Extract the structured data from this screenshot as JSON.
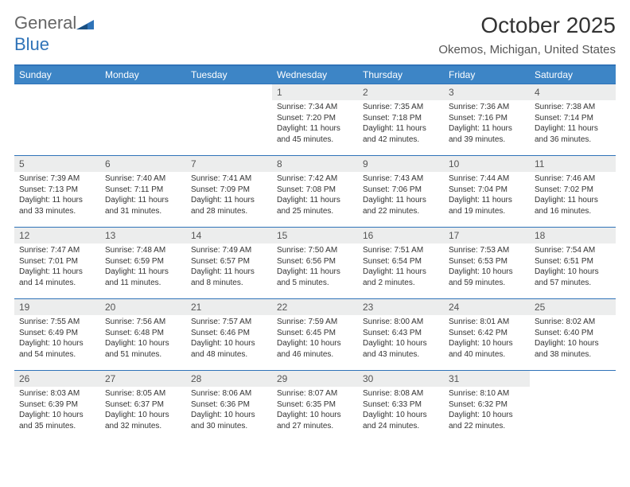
{
  "logo": {
    "line1": "General",
    "line2": "Blue"
  },
  "title": "October 2025",
  "location": "Okemos, Michigan, United States",
  "colors": {
    "header_bg": "#3d85c6",
    "header_border": "#2f73b8",
    "daynum_bg": "#eceded",
    "text": "#333333",
    "muted": "#555555",
    "logo_blue": "#2f73b8"
  },
  "typography": {
    "title_fontsize": 28,
    "location_fontsize": 15,
    "header_fontsize": 12,
    "daynum_fontsize": 12,
    "body_fontsize": 10
  },
  "weekdays": [
    "Sunday",
    "Monday",
    "Tuesday",
    "Wednesday",
    "Thursday",
    "Friday",
    "Saturday"
  ],
  "first_weekday_index": 3,
  "days": [
    {
      "n": 1,
      "sunrise": "7:34 AM",
      "sunset": "7:20 PM",
      "daylight": "11 hours and 45 minutes."
    },
    {
      "n": 2,
      "sunrise": "7:35 AM",
      "sunset": "7:18 PM",
      "daylight": "11 hours and 42 minutes."
    },
    {
      "n": 3,
      "sunrise": "7:36 AM",
      "sunset": "7:16 PM",
      "daylight": "11 hours and 39 minutes."
    },
    {
      "n": 4,
      "sunrise": "7:38 AM",
      "sunset": "7:14 PM",
      "daylight": "11 hours and 36 minutes."
    },
    {
      "n": 5,
      "sunrise": "7:39 AM",
      "sunset": "7:13 PM",
      "daylight": "11 hours and 33 minutes."
    },
    {
      "n": 6,
      "sunrise": "7:40 AM",
      "sunset": "7:11 PM",
      "daylight": "11 hours and 31 minutes."
    },
    {
      "n": 7,
      "sunrise": "7:41 AM",
      "sunset": "7:09 PM",
      "daylight": "11 hours and 28 minutes."
    },
    {
      "n": 8,
      "sunrise": "7:42 AM",
      "sunset": "7:08 PM",
      "daylight": "11 hours and 25 minutes."
    },
    {
      "n": 9,
      "sunrise": "7:43 AM",
      "sunset": "7:06 PM",
      "daylight": "11 hours and 22 minutes."
    },
    {
      "n": 10,
      "sunrise": "7:44 AM",
      "sunset": "7:04 PM",
      "daylight": "11 hours and 19 minutes."
    },
    {
      "n": 11,
      "sunrise": "7:46 AM",
      "sunset": "7:02 PM",
      "daylight": "11 hours and 16 minutes."
    },
    {
      "n": 12,
      "sunrise": "7:47 AM",
      "sunset": "7:01 PM",
      "daylight": "11 hours and 14 minutes."
    },
    {
      "n": 13,
      "sunrise": "7:48 AM",
      "sunset": "6:59 PM",
      "daylight": "11 hours and 11 minutes."
    },
    {
      "n": 14,
      "sunrise": "7:49 AM",
      "sunset": "6:57 PM",
      "daylight": "11 hours and 8 minutes."
    },
    {
      "n": 15,
      "sunrise": "7:50 AM",
      "sunset": "6:56 PM",
      "daylight": "11 hours and 5 minutes."
    },
    {
      "n": 16,
      "sunrise": "7:51 AM",
      "sunset": "6:54 PM",
      "daylight": "11 hours and 2 minutes."
    },
    {
      "n": 17,
      "sunrise": "7:53 AM",
      "sunset": "6:53 PM",
      "daylight": "10 hours and 59 minutes."
    },
    {
      "n": 18,
      "sunrise": "7:54 AM",
      "sunset": "6:51 PM",
      "daylight": "10 hours and 57 minutes."
    },
    {
      "n": 19,
      "sunrise": "7:55 AM",
      "sunset": "6:49 PM",
      "daylight": "10 hours and 54 minutes."
    },
    {
      "n": 20,
      "sunrise": "7:56 AM",
      "sunset": "6:48 PM",
      "daylight": "10 hours and 51 minutes."
    },
    {
      "n": 21,
      "sunrise": "7:57 AM",
      "sunset": "6:46 PM",
      "daylight": "10 hours and 48 minutes."
    },
    {
      "n": 22,
      "sunrise": "7:59 AM",
      "sunset": "6:45 PM",
      "daylight": "10 hours and 46 minutes."
    },
    {
      "n": 23,
      "sunrise": "8:00 AM",
      "sunset": "6:43 PM",
      "daylight": "10 hours and 43 minutes."
    },
    {
      "n": 24,
      "sunrise": "8:01 AM",
      "sunset": "6:42 PM",
      "daylight": "10 hours and 40 minutes."
    },
    {
      "n": 25,
      "sunrise": "8:02 AM",
      "sunset": "6:40 PM",
      "daylight": "10 hours and 38 minutes."
    },
    {
      "n": 26,
      "sunrise": "8:03 AM",
      "sunset": "6:39 PM",
      "daylight": "10 hours and 35 minutes."
    },
    {
      "n": 27,
      "sunrise": "8:05 AM",
      "sunset": "6:37 PM",
      "daylight": "10 hours and 32 minutes."
    },
    {
      "n": 28,
      "sunrise": "8:06 AM",
      "sunset": "6:36 PM",
      "daylight": "10 hours and 30 minutes."
    },
    {
      "n": 29,
      "sunrise": "8:07 AM",
      "sunset": "6:35 PM",
      "daylight": "10 hours and 27 minutes."
    },
    {
      "n": 30,
      "sunrise": "8:08 AM",
      "sunset": "6:33 PM",
      "daylight": "10 hours and 24 minutes."
    },
    {
      "n": 31,
      "sunrise": "8:10 AM",
      "sunset": "6:32 PM",
      "daylight": "10 hours and 22 minutes."
    }
  ]
}
